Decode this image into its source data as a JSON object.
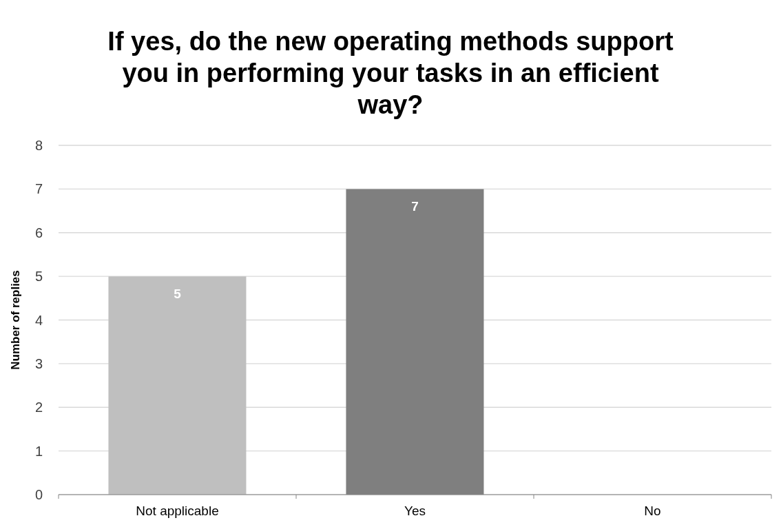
{
  "chart_data": {
    "type": "bar",
    "title": "If yes, do the new operating methods support you in performing your tasks in an efficient way?",
    "ylabel": "Number of replies",
    "categories": [
      "Not applicable",
      "Yes",
      "No"
    ],
    "values": [
      5,
      7,
      0
    ],
    "colors": [
      "#bfbfbf",
      "#7f7f7f",
      "#a5a5a5"
    ],
    "ylim": [
      0,
      8
    ],
    "yticks": [
      0,
      1,
      2,
      3,
      4,
      5,
      6,
      7,
      8
    ],
    "grid": "y",
    "value_labels": [
      "5",
      "7",
      null
    ]
  }
}
